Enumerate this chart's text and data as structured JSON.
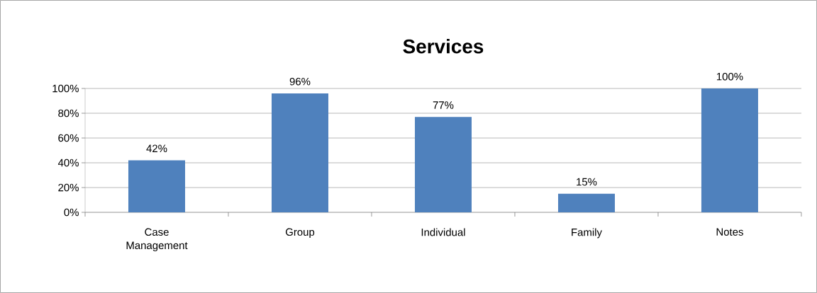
{
  "chart_data": {
    "type": "bar",
    "title": "Services",
    "categories": [
      "Case Management",
      "Group",
      "Individual",
      "Family",
      "Notes"
    ],
    "values": [
      42,
      96,
      77,
      15,
      100
    ],
    "value_labels": [
      "42%",
      "96%",
      "77%",
      "15%",
      "100%"
    ],
    "color": "#4f81bd",
    "ylim": [
      0,
      100
    ],
    "yticks": [
      {
        "value": 0,
        "label": "0%"
      },
      {
        "value": 20,
        "label": "20%"
      },
      {
        "value": 40,
        "label": "40%"
      },
      {
        "value": 60,
        "label": "60%"
      },
      {
        "value": 80,
        "label": "80%"
      },
      {
        "value": 100,
        "label": "100%"
      }
    ],
    "grid": "y"
  }
}
